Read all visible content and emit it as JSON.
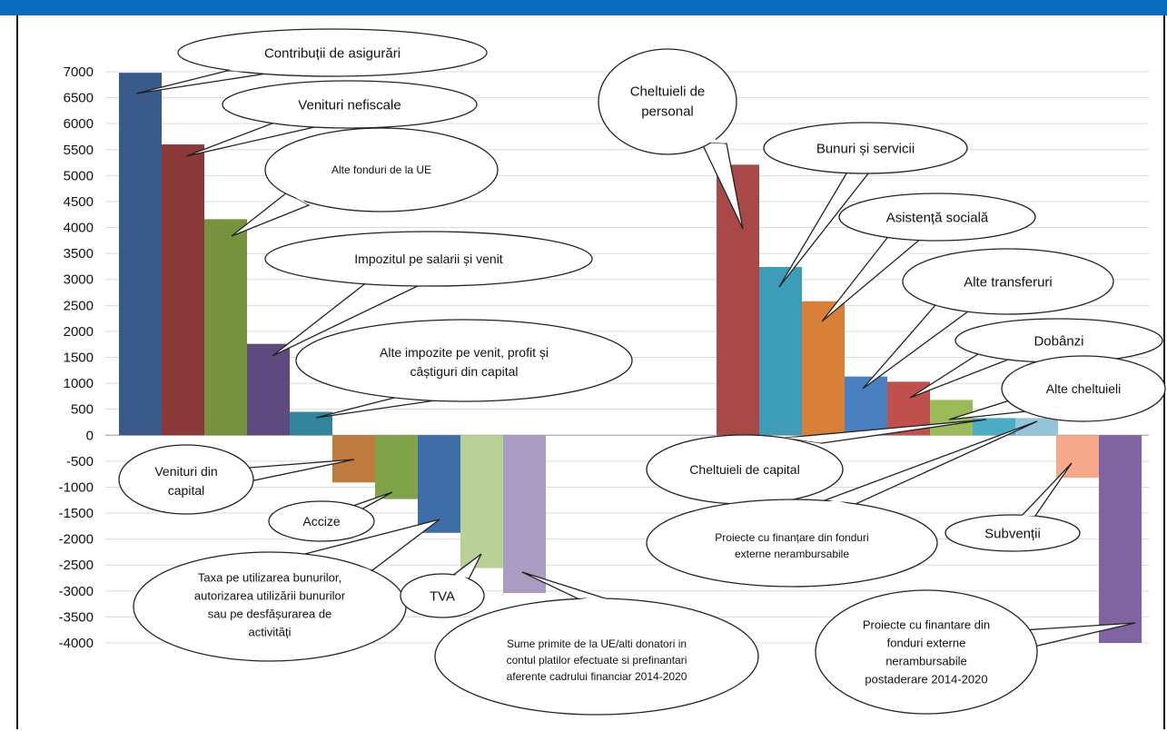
{
  "chart_data": {
    "type": "bar",
    "title": "",
    "xlabel": "",
    "ylabel": "",
    "ylim": [
      -4000,
      7000
    ],
    "yticks": [
      7000,
      6500,
      6000,
      5500,
      5000,
      4500,
      4000,
      3500,
      3000,
      2500,
      2000,
      1500,
      1000,
      500,
      0,
      -500,
      -1000,
      -1500,
      -2000,
      -2500,
      -3000,
      -3500,
      -4000
    ],
    "grid": true,
    "categories": [
      "Contribuții de asigurări",
      "Venituri nefiscale",
      "Alte fonduri de la UE",
      "Impozitul pe salarii și venit",
      "Alte impozite pe venit, profit și câștiguri din capital",
      "Venituri din capital",
      "Accize",
      "Taxa pe utilizarea bunurilor, autorizarea utilizării bunurilor sau pe desfășurarea de activități",
      "TVA",
      "Sume primite de la UE/alti donatori in contul platilor efectuate si prefinantari aferente cadrului financiar 2014-2020",
      "Cheltuieli de personal",
      "Bunuri și servicii",
      "Asistență socială",
      "Alte transferuri",
      "Dobânzi",
      "Alte cheltuieli",
      "Cheltuieli de capital",
      "Proiecte cu finanțare din fonduri externe nerambursabile",
      "Subvenții",
      "Proiecte cu finantare din fonduri externe nerambursabile postaderare 2014-2020"
    ],
    "values": [
      6980,
      5600,
      4160,
      1760,
      450,
      -910,
      -1230,
      -1880,
      -2560,
      -3040,
      5210,
      3240,
      2580,
      1130,
      1030,
      680,
      330,
      330,
      -820,
      -4000
    ],
    "colors": [
      "#3a5a8c",
      "#8c3838",
      "#76923c",
      "#5e4a7e",
      "#31859c",
      "#c07a3d",
      "#7fa347",
      "#3e6ea8",
      "#b9d096",
      "#a99bc2",
      "#a84848",
      "#3d9db8",
      "#d98038",
      "#4a7fc1",
      "#c0504d",
      "#9bbb59",
      "#4bacc6",
      "#93c4d8",
      "#f5a88a",
      "#8064a2"
    ]
  }
}
